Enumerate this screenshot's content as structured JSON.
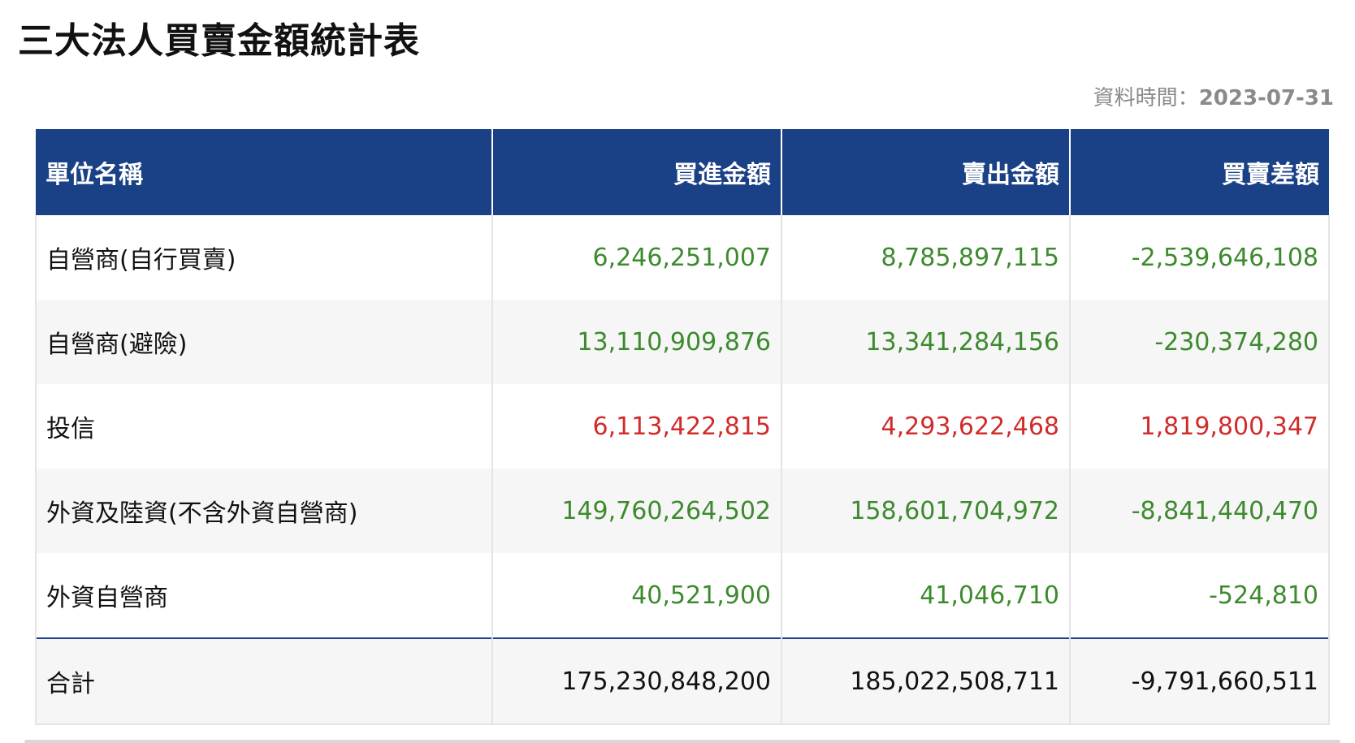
{
  "page": {
    "title": "三大法人買賣金額統計表",
    "data_time_label": "資料時間：",
    "data_time_value": "2023-07-31"
  },
  "table": {
    "headers": [
      "單位名稱",
      "買進金額",
      "賣出金額",
      "買賣差額"
    ],
    "rows": [
      {
        "name": "自營商(自行買賣)",
        "buy": "6,246,251,007",
        "sell": "8,785,897,115",
        "diff": "-2,539,646,108",
        "trend": "down"
      },
      {
        "name": "自營商(避險)",
        "buy": "13,110,909,876",
        "sell": "13,341,284,156",
        "diff": "-230,374,280",
        "trend": "down"
      },
      {
        "name": "投信",
        "buy": "6,113,422,815",
        "sell": "4,293,622,468",
        "diff": "1,819,800,347",
        "trend": "up"
      },
      {
        "name": "外資及陸資(不含外資自營商)",
        "buy": "149,760,264,502",
        "sell": "158,601,704,972",
        "diff": "-8,841,440,470",
        "trend": "down"
      },
      {
        "name": "外資自營商",
        "buy": "40,521,900",
        "sell": "41,046,710",
        "diff": "-524,810",
        "trend": "down"
      }
    ],
    "total": {
      "name": "合計",
      "buy": "175,230,848,200",
      "sell": "185,022,508,711",
      "diff": "-9,791,660,511"
    }
  },
  "colors": {
    "header_bg": "#1a4185",
    "negative": "#3c8a2e",
    "positive": "#d12b2b"
  }
}
